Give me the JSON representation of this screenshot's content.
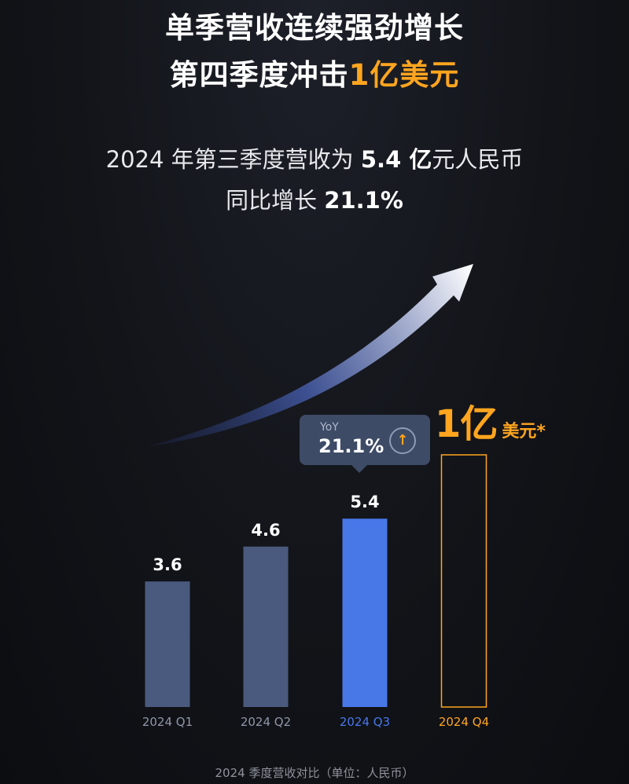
{
  "headline": {
    "line1": "单季营收连续强劲增长",
    "line2_prefix": "第四季度冲击",
    "line2_highlight": "1亿美元"
  },
  "subtitle": {
    "line1_prefix": "2024 年第三季度营收为 ",
    "line1_value": "5.4 亿",
    "line1_suffix": "元人民币",
    "line2_prefix": "同比增长 ",
    "line2_value": "21.1%"
  },
  "tooltip": {
    "label": "YoY",
    "value": "21.1%",
    "icon": "arrow-up-circle-icon"
  },
  "target": {
    "number": "1亿",
    "unit": "美元*"
  },
  "footnote": "2024 季度营收对比（单位：人民币）",
  "colors": {
    "accent": "#ffa51f",
    "bar_past": "#4a5a7e",
    "bar_current": "#4877e8",
    "label_muted": "#8f97a8",
    "label_current": "#4877e8"
  },
  "chart_data": {
    "type": "bar",
    "categories": [
      "2024 Q1",
      "2024 Q2",
      "2024 Q3",
      "2024 Q4"
    ],
    "values": [
      3.6,
      4.6,
      5.4,
      null
    ],
    "value_labels": [
      "3.6",
      "4.6",
      "5.4",
      ""
    ],
    "highlight_index": 2,
    "target_index": 3,
    "grid": false
  }
}
